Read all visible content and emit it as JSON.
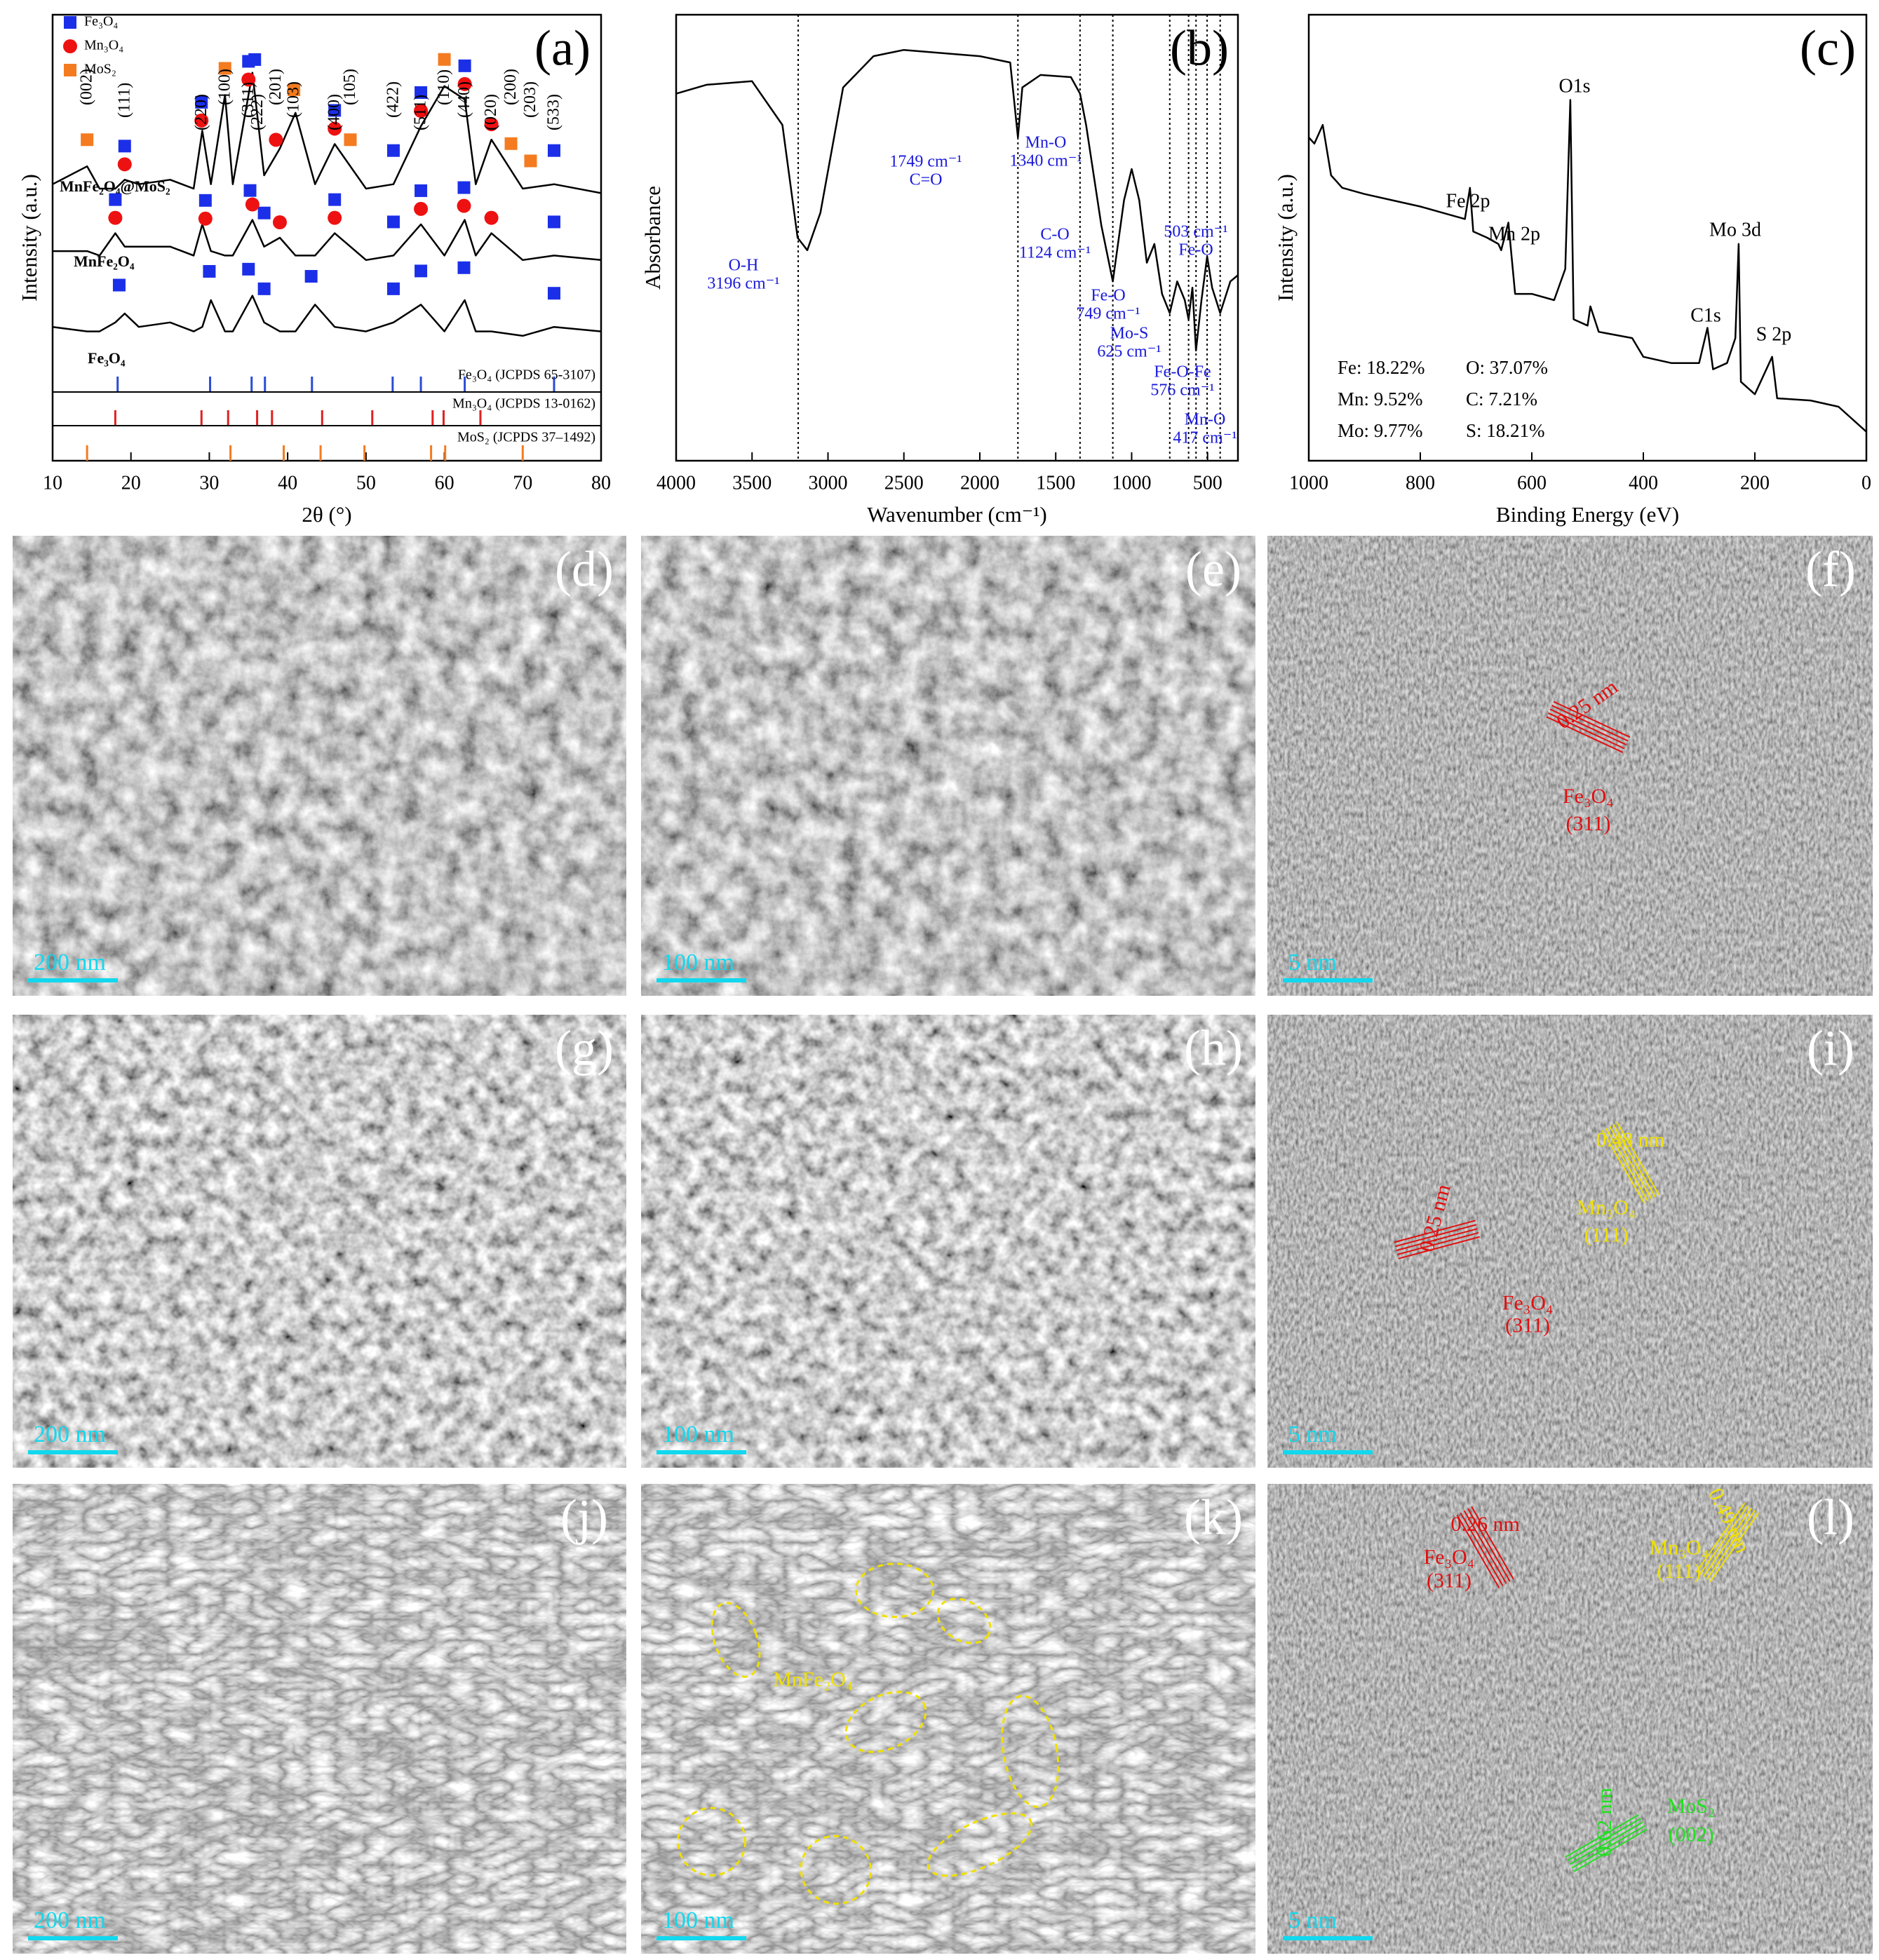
{
  "chart_data": [
    {
      "type": "line",
      "panel_label": "(a)",
      "xlabel": "2θ (°)",
      "ylabel": "Intensity (a.u.)",
      "xlim": [
        10,
        80
      ],
      "xticks": [
        10,
        20,
        30,
        40,
        50,
        60,
        70,
        80
      ],
      "ylim": [
        0,
        100
      ],
      "x": [
        10,
        14.4,
        16,
        18,
        19.2,
        21,
        25,
        28,
        29.1,
        30.2,
        32,
        33,
        35.5,
        37,
        39,
        41,
        43.5,
        46,
        50,
        53.5,
        57,
        60,
        62.6,
        64,
        66,
        70,
        74,
        80
      ],
      "phases": [
        {
          "name": "Fe₃O₄",
          "color": "#1b2fe8",
          "shape": "square"
        },
        {
          "name": "Mn₃O₄",
          "color": "#ee1111",
          "shape": "circle"
        },
        {
          "name": "MoS₂",
          "color": "#f47b20",
          "shape": "square"
        }
      ],
      "series": [
        {
          "name": "MnFe₂O₄@MoS₂",
          "color": "#000000",
          "values": [
            62,
            66,
            61,
            61,
            63,
            62,
            63,
            61,
            74,
            62,
            82,
            62,
            87,
            64,
            70,
            78,
            62,
            71,
            61,
            62,
            75,
            84,
            81,
            62,
            72,
            61,
            62,
            60
          ],
          "markers": [
            [
              19.2,
              29,
              35,
              35.8,
              46,
              53.5,
              57,
              62.6,
              74
            ],
            [
              19.2,
              29,
              35,
              38.5,
              46,
              57,
              62.6,
              66
            ],
            [
              14.4,
              32,
              40.8,
              48,
              60,
              68.5,
              71
            ]
          ]
        },
        {
          "name": "MnFe₂O₄",
          "color": "#000000",
          "values": [
            47,
            47,
            46,
            51,
            48,
            48,
            48,
            46,
            53,
            47,
            46,
            46,
            54,
            48,
            50,
            46,
            46,
            51,
            45,
            46,
            53,
            46,
            54,
            46,
            51,
            45,
            46,
            45
          ],
          "markers": [
            [
              18,
              29.5,
              35.2,
              37,
              46,
              53.5,
              57,
              62.5,
              74
            ],
            [
              18,
              29.5,
              35.5,
              39,
              46,
              57,
              62.5,
              66
            ],
            []
          ]
        },
        {
          "name": "Fe₃O₄",
          "color": "#000000",
          "values": [
            30,
            29,
            29,
            31,
            33,
            30,
            31,
            29,
            30,
            36,
            29,
            29,
            37,
            31,
            29,
            29,
            35,
            30,
            29,
            31,
            35,
            29,
            36,
            29,
            29,
            28,
            30,
            29
          ],
          "markers": [
            [
              18.5,
              30,
              35,
              37,
              43,
              53.5,
              57,
              62.5,
              74
            ],
            [],
            []
          ]
        }
      ],
      "peak_labels": [
        {
          "label": "(002)",
          "x": 14.4
        },
        {
          "label": "(111)",
          "x": 19.2
        },
        {
          "label": "(220)",
          "x": 29
        },
        {
          "label": "(100)",
          "x": 32
        },
        {
          "label": "(311)",
          "x": 35
        },
        {
          "label": "(222)",
          "x": 36.2
        },
        {
          "label": "(201)",
          "x": 38.5
        },
        {
          "label": "(103)",
          "x": 40.8
        },
        {
          "label": "(400)",
          "x": 46
        },
        {
          "label": "(105)",
          "x": 48
        },
        {
          "label": "(422)",
          "x": 53.5
        },
        {
          "label": "(511)",
          "x": 57
        },
        {
          "label": "(110)",
          "x": 60
        },
        {
          "label": "(440)",
          "x": 62.6
        },
        {
          "label": "(020)",
          "x": 66
        },
        {
          "label": "(200)",
          "x": 68.5
        },
        {
          "label": "(203)",
          "x": 71
        },
        {
          "label": "(533)",
          "x": 74
        }
      ],
      "references": [
        {
          "name": "Fe₃O₄ (JCPDS 65-3107)",
          "color": "#2a4bd7",
          "peaks": [
            18.3,
            30.1,
            35.4,
            37.1,
            43.1,
            53.4,
            57,
            62.6,
            74
          ]
        },
        {
          "name": "Mn₃O₄ (JCPDS 13-0162)",
          "color": "#e02020",
          "peaks": [
            18,
            29,
            32.4,
            36.1,
            38,
            44.4,
            50.8,
            58.5,
            59.9,
            64.6
          ]
        },
        {
          "name": "MoS₂ (JCPDS 37–1492)",
          "color": "#f47b20",
          "peaks": [
            14.4,
            32.7,
            39.5,
            44.2,
            49.8,
            58.3,
            60.1,
            70
          ]
        }
      ]
    },
    {
      "type": "line",
      "panel_label": "(b)",
      "xlabel": "Wavenumber (cm⁻¹)",
      "ylabel": "Absorbance",
      "xlim": [
        4000,
        300
      ],
      "xticks": [
        4000,
        3500,
        3000,
        2500,
        2000,
        1500,
        1000,
        500
      ],
      "ylim": [
        0,
        100
      ],
      "x": [
        4000,
        3800,
        3500,
        3300,
        3200,
        3136,
        3050,
        2900,
        2700,
        2500,
        2000,
        1800,
        1749,
        1720,
        1600,
        1400,
        1340,
        1300,
        1200,
        1124,
        1050,
        1000,
        950,
        900,
        850,
        800,
        749,
        700,
        650,
        625,
        600,
        576,
        540,
        503,
        470,
        417,
        350,
        300
      ],
      "series": [
        {
          "color": "#000000",
          "values": [
            82.3,
            84.3,
            85.1,
            75.3,
            50,
            47.2,
            55.6,
            83.7,
            90.7,
            92.1,
            90.7,
            89.3,
            72.5,
            83.7,
            86.5,
            86,
            82.3,
            75.3,
            52.8,
            40.2,
            58.4,
            65.4,
            58.4,
            44.4,
            48.6,
            37.4,
            33.1,
            40.2,
            36,
            31.7,
            38.8,
            24.7,
            36,
            45.8,
            38.8,
            33.1,
            40.2,
            41.6
          ]
        }
      ],
      "vlines": [
        3196,
        1749,
        1340,
        1124,
        749,
        625,
        576,
        503,
        417
      ],
      "annotations": [
        {
          "lines": [
            "O-H",
            "3196 cm⁻¹"
          ]
        },
        {
          "lines": [
            "Mn-O",
            "1340 cm⁻¹"
          ]
        },
        {
          "lines": [
            "1749 cm⁻¹",
            "C=O"
          ]
        },
        {
          "lines": [
            "C-O",
            "1124 cm⁻¹"
          ]
        },
        {
          "lines": [
            "Fe-O",
            "749 cm⁻¹"
          ]
        },
        {
          "lines": [
            "Mo-S",
            "625 cm⁻¹"
          ]
        },
        {
          "lines": [
            "Fe-O-Fe",
            "576 cm⁻¹"
          ]
        },
        {
          "lines": [
            "503 cm⁻¹",
            "Fe-O"
          ]
        },
        {
          "lines": [
            "Mn-O",
            "417 cm⁻¹"
          ]
        }
      ],
      "annotation_color": "#1a1adb"
    },
    {
      "type": "line",
      "panel_label": "(c)",
      "xlabel": "Binding Energy (eV)",
      "ylabel": "Intensity (a.u.)",
      "xlim": [
        1000,
        0
      ],
      "xticks": [
        1000,
        800,
        600,
        400,
        200,
        0
      ],
      "ylim": [
        0,
        100
      ],
      "x": [
        1000,
        990,
        975,
        960,
        940,
        900,
        850,
        800,
        760,
        720,
        711,
        705,
        680,
        660,
        655,
        642,
        630,
        600,
        560,
        540,
        531,
        525,
        500,
        495,
        480,
        420,
        400,
        350,
        300,
        285,
        275,
        250,
        235,
        229,
        225,
        200,
        169,
        160,
        100,
        50,
        0
      ],
      "series": [
        {
          "color": "#000000",
          "values": [
            72.5,
            71.1,
            75.3,
            64,
            61.2,
            59.8,
            58.4,
            57,
            55.6,
            54.2,
            61.2,
            51.4,
            50,
            48.6,
            47.2,
            53.4,
            37.4,
            37.4,
            36,
            43,
            80.9,
            31.7,
            30.3,
            34.6,
            28.9,
            27.5,
            23.3,
            21.9,
            21.9,
            29.8,
            20.5,
            21.9,
            27.5,
            48.6,
            17.7,
            14.9,
            23.3,
            14,
            13.5,
            12.1,
            6.5
          ]
        }
      ],
      "annotations": [
        {
          "lines": [
            "Fe 2p"
          ]
        },
        {
          "lines": [
            "Mn 2p"
          ]
        },
        {
          "lines": [
            "O1s"
          ]
        },
        {
          "lines": [
            "Mo 3d"
          ]
        },
        {
          "lines": [
            "C1s"
          ]
        },
        {
          "lines": [
            "S 2p"
          ]
        }
      ],
      "composition": [
        "Fe: 18.22%",
        "O: 37.07%",
        "Mn: 9.52%",
        "C: 7.21%",
        "Mo: 9.77%",
        "S: 18.21%"
      ]
    }
  ],
  "images": [
    {
      "label": "(d)",
      "scale_bar": "200 nm",
      "style": "sem",
      "notes": []
    },
    {
      "label": "(e)",
      "scale_bar": "100 nm",
      "style": "sem",
      "notes": []
    },
    {
      "label": "(f)",
      "scale_bar": "5 nm",
      "style": "tem",
      "notes": [
        {
          "text": "0.25 nm",
          "color": "#e01010"
        },
        {
          "text": "Fe₃O₄",
          "color": "#e01010"
        },
        {
          "text": "(311)",
          "color": "#e01010"
        }
      ]
    },
    {
      "label": "(g)",
      "scale_bar": "200 nm",
      "style": "sem2",
      "notes": []
    },
    {
      "label": "(h)",
      "scale_bar": "100 nm",
      "style": "sem2",
      "notes": []
    },
    {
      "label": "(i)",
      "scale_bar": "5 nm",
      "style": "tem",
      "notes": [
        {
          "text": "0.48 nm",
          "color": "#f0e000"
        },
        {
          "text": "Mn₃O₄",
          "color": "#f0e000"
        },
        {
          "text": "(111)",
          "color": "#f0e000"
        },
        {
          "text": "0.25 nm",
          "color": "#e01010"
        },
        {
          "text": "Fe₃O₄",
          "color": "#e01010"
        },
        {
          "text": "(311)",
          "color": "#e01010"
        }
      ]
    },
    {
      "label": "(j)",
      "scale_bar": "200 nm",
      "style": "sem3",
      "notes": []
    },
    {
      "label": "(k)",
      "scale_bar": "100 nm",
      "style": "sem3",
      "notes": [
        {
          "text": "MnFe₂O₄",
          "color": "#f0e000"
        }
      ]
    },
    {
      "label": "(l)",
      "scale_bar": "5 nm",
      "style": "tem",
      "notes": [
        {
          "text": "0.26 nm",
          "color": "#e01010"
        },
        {
          "text": "Fe₃O₄",
          "color": "#e01010"
        },
        {
          "text": "(311)",
          "color": "#e01010"
        },
        {
          "text": "0.49 nm",
          "color": "#f0e000"
        },
        {
          "text": "Mn₃O₄",
          "color": "#f0e000"
        },
        {
          "text": "(111)",
          "color": "#f0e000"
        },
        {
          "text": "0.62 nm",
          "color": "#20e020"
        },
        {
          "text": "MoS₂",
          "color": "#20e020"
        },
        {
          "text": "(002)",
          "color": "#20e020"
        }
      ]
    }
  ]
}
